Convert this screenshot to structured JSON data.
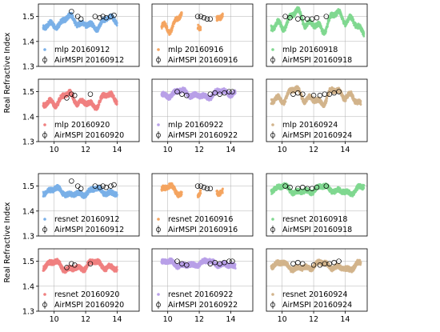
{
  "chart_data": {
    "type": "scatter",
    "ylabel": "Real Refractive Index",
    "xlim": [
      9,
      15.4
    ],
    "ylim": [
      1.3,
      1.55
    ],
    "xticks": [
      10,
      12,
      14
    ],
    "yticks": [
      1.3,
      1.4,
      1.5
    ],
    "grid": true,
    "legend_placement": "lower-left",
    "reference_series_style": "open-circle",
    "groups": [
      {
        "name": "mlp",
        "panels": [
          {
            "date": "20160912",
            "color": "#7ab0e8",
            "legend": [
              "mlp 20160912",
              "AirMSPI 20160912"
            ],
            "model": {
              "start": 9.3,
              "end": 14.0,
              "segments": [
                [
                  9.3,
                  14.0
                ]
              ],
              "mean": 1.475,
              "amp": 0.03
            },
            "airmspi": [
              [
                11.1,
                1.52
              ],
              [
                11.5,
                1.5
              ],
              [
                11.7,
                1.49
              ],
              [
                12.6,
                1.5
              ],
              [
                12.9,
                1.495
              ],
              [
                13.1,
                1.5
              ],
              [
                13.3,
                1.495
              ],
              [
                13.6,
                1.5
              ],
              [
                13.8,
                1.505
              ]
            ]
          },
          {
            "date": "20160916",
            "color": "#f4a460",
            "legend": [
              "mlp 20160916",
              "AirMSPI 20160916"
            ],
            "model": {
              "start": 9.6,
              "end": 13.5,
              "segments": [
                [
                  9.6,
                  10.9
                ],
                [
                  11.9,
                  12.1
                ],
                [
                  13.1,
                  13.5
                ]
              ],
              "mean": 1.47,
              "amp": 0.05
            },
            "airmspi": [
              [
                11.9,
                1.5
              ],
              [
                12.1,
                1.5
              ],
              [
                12.3,
                1.495
              ],
              [
                12.5,
                1.49
              ],
              [
                12.7,
                1.49
              ]
            ]
          },
          {
            "date": "20160918",
            "color": "#80d890",
            "legend": [
              "mlp 20160918",
              "AirMSPI 20160918"
            ],
            "model": {
              "start": 9.3,
              "end": 15.2,
              "segments": [
                [
                  9.3,
                  15.2
                ]
              ],
              "mean": 1.48,
              "amp": 0.05
            },
            "airmspi": [
              [
                10.2,
                1.5
              ],
              [
                10.5,
                1.495
              ],
              [
                11.0,
                1.49
              ],
              [
                11.3,
                1.495
              ],
              [
                11.6,
                1.49
              ],
              [
                11.9,
                1.49
              ],
              [
                12.2,
                1.495
              ],
              [
                12.8,
                1.5
              ]
            ]
          },
          {
            "date": "20160920",
            "color": "#f08080",
            "legend": [
              "mlp 20160920",
              "AirMSPI 20160920"
            ],
            "model": {
              "start": 9.3,
              "end": 14.0,
              "segments": [
                [
                  9.3,
                  14.0
                ]
              ],
              "mean": 1.465,
              "amp": 0.035
            },
            "airmspi": [
              [
                10.8,
                1.475
              ],
              [
                11.1,
                1.49
              ],
              [
                11.3,
                1.485
              ],
              [
                12.3,
                1.49
              ]
            ]
          },
          {
            "date": "20160922",
            "color": "#b8a0e8",
            "legend": [
              "mlp 20160922",
              "AirMSPI 20160922"
            ],
            "model": {
              "start": 9.6,
              "end": 14.3,
              "segments": [
                [
                  9.6,
                  14.3
                ]
              ],
              "mean": 1.49,
              "amp": 0.02
            },
            "airmspi": [
              [
                10.6,
                1.5
              ],
              [
                10.9,
                1.49
              ],
              [
                11.2,
                1.485
              ],
              [
                12.7,
                1.49
              ],
              [
                13.0,
                1.495
              ],
              [
                13.3,
                1.49
              ],
              [
                13.6,
                1.495
              ],
              [
                13.9,
                1.5
              ],
              [
                14.1,
                1.5
              ]
            ]
          },
          {
            "date": "20160924",
            "color": "#d2b48c",
            "legend": [
              "mlp 20160924",
              "AirMSPI 20160924"
            ],
            "model": {
              "start": 9.3,
              "end": 15.0,
              "segments": [
                [
                  9.3,
                  15.0
                ]
              ],
              "mean": 1.48,
              "amp": 0.04
            },
            "airmspi": [
              [
                10.7,
                1.49
              ],
              [
                11.0,
                1.495
              ],
              [
                11.3,
                1.49
              ],
              [
                12.0,
                1.485
              ],
              [
                12.4,
                1.485
              ],
              [
                12.7,
                1.49
              ],
              [
                13.0,
                1.49
              ],
              [
                13.3,
                1.495
              ],
              [
                13.6,
                1.5
              ]
            ]
          }
        ]
      },
      {
        "name": "resnet",
        "panels": [
          {
            "date": "20160912",
            "color": "#7ab0e8",
            "legend": [
              "resnet 20160912",
              "AirMSPI 20160912"
            ],
            "model": {
              "start": 9.3,
              "end": 14.0,
              "segments": [
                [
                  9.3,
                  14.0
                ]
              ],
              "mean": 1.475,
              "amp": 0.02
            },
            "airmspi": [
              [
                11.1,
                1.52
              ],
              [
                11.5,
                1.5
              ],
              [
                11.7,
                1.49
              ],
              [
                12.6,
                1.5
              ],
              [
                12.9,
                1.495
              ],
              [
                13.1,
                1.5
              ],
              [
                13.3,
                1.495
              ],
              [
                13.6,
                1.5
              ],
              [
                13.8,
                1.505
              ]
            ]
          },
          {
            "date": "20160916",
            "color": "#f4a460",
            "legend": [
              "resnet 20160916",
              "AirMSPI 20160916"
            ],
            "model": {
              "start": 9.6,
              "end": 13.5,
              "segments": [
                [
                  9.6,
                  10.9
                ],
                [
                  11.9,
                  12.1
                ],
                [
                  13.1,
                  13.5
                ]
              ],
              "mean": 1.48,
              "amp": 0.025
            },
            "airmspi": [
              [
                11.9,
                1.5
              ],
              [
                12.1,
                1.5
              ],
              [
                12.3,
                1.495
              ],
              [
                12.5,
                1.49
              ],
              [
                12.7,
                1.49
              ]
            ]
          },
          {
            "date": "20160918",
            "color": "#80d890",
            "legend": [
              "resnet 20160918",
              "AirMSPI 20160918"
            ],
            "model": {
              "start": 9.3,
              "end": 15.2,
              "segments": [
                [
                  9.3,
                  15.2
                ]
              ],
              "mean": 1.485,
              "amp": 0.02
            },
            "airmspi": [
              [
                10.2,
                1.5
              ],
              [
                10.5,
                1.495
              ],
              [
                11.0,
                1.49
              ],
              [
                11.3,
                1.495
              ],
              [
                11.6,
                1.49
              ],
              [
                11.9,
                1.49
              ],
              [
                12.2,
                1.495
              ],
              [
                12.8,
                1.5
              ]
            ]
          },
          {
            "date": "20160920",
            "color": "#f08080",
            "legend": [
              "resnet 20160920",
              "AirMSPI 20160920"
            ],
            "model": {
              "start": 9.3,
              "end": 14.0,
              "segments": [
                [
                  9.3,
                  14.0
                ]
              ],
              "mean": 1.48,
              "amp": 0.025
            },
            "airmspi": [
              [
                10.8,
                1.475
              ],
              [
                11.1,
                1.49
              ],
              [
                11.3,
                1.485
              ],
              [
                12.3,
                1.49
              ]
            ]
          },
          {
            "date": "20160922",
            "color": "#b8a0e8",
            "legend": [
              "resnet 20160922",
              "AirMSPI 20160922"
            ],
            "model": {
              "start": 9.6,
              "end": 14.3,
              "segments": [
                [
                  9.6,
                  14.3
                ]
              ],
              "mean": 1.49,
              "amp": 0.015
            },
            "airmspi": [
              [
                10.6,
                1.5
              ],
              [
                10.9,
                1.49
              ],
              [
                11.2,
                1.485
              ],
              [
                12.7,
                1.49
              ],
              [
                13.0,
                1.495
              ],
              [
                13.3,
                1.49
              ],
              [
                13.6,
                1.495
              ],
              [
                13.9,
                1.5
              ],
              [
                14.1,
                1.5
              ]
            ]
          },
          {
            "date": "20160924",
            "color": "#d2b48c",
            "legend": [
              "resnet 20160924",
              "AirMSPI 20160924"
            ],
            "model": {
              "start": 9.3,
              "end": 15.0,
              "segments": [
                [
                  9.3,
                  15.0
                ]
              ],
              "mean": 1.48,
              "amp": 0.02
            },
            "airmspi": [
              [
                10.7,
                1.49
              ],
              [
                11.0,
                1.495
              ],
              [
                11.3,
                1.49
              ],
              [
                12.0,
                1.485
              ],
              [
                12.4,
                1.485
              ],
              [
                12.7,
                1.49
              ],
              [
                13.0,
                1.49
              ],
              [
                13.3,
                1.495
              ],
              [
                13.6,
                1.5
              ]
            ]
          }
        ]
      }
    ]
  }
}
